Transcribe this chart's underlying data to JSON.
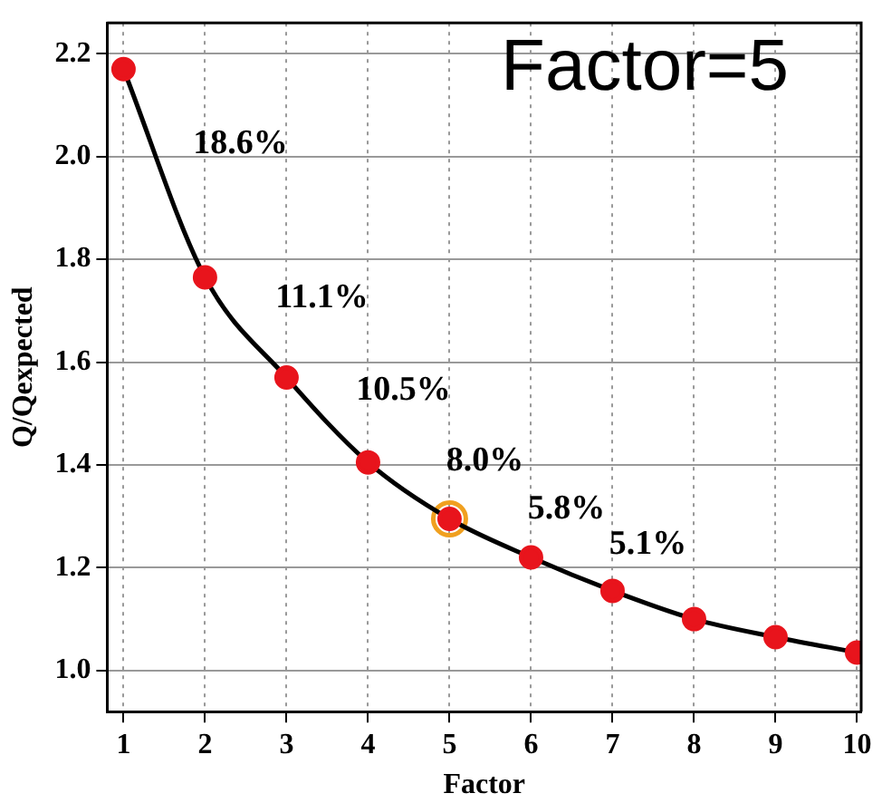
{
  "chart_data": {
    "type": "line",
    "xlabel": "Factor",
    "ylabel": "Q/Qexpected",
    "x": [
      1,
      2,
      3,
      4,
      5,
      6,
      7,
      8,
      9,
      10
    ],
    "series": [
      {
        "color": "#e8141c",
        "values": [
          2.17,
          1.765,
          1.57,
          1.405,
          1.295,
          1.22,
          1.155,
          1.1,
          1.065,
          1.035
        ],
        "marker": "circle",
        "line_style": "solid"
      },
      {
        "type": "scatter",
        "color": "#f0a020",
        "x": [
          5
        ],
        "values": [
          1.295
        ],
        "marker": "circle"
      }
    ],
    "xlim": [
      0.8,
      10.05
    ],
    "xticks": [
      1,
      2,
      3,
      4,
      5,
      6,
      7,
      8,
      9,
      10
    ],
    "ylim": [
      0.92,
      2.26
    ],
    "yticks": [
      {
        "value": 1.0,
        "label": "1.0"
      },
      {
        "value": 1.2,
        "label": "1.2"
      },
      {
        "value": 1.4,
        "label": "1.4"
      },
      {
        "value": 1.6,
        "label": "1.6"
      },
      {
        "value": 1.8,
        "label": "1.8"
      },
      {
        "value": 2.0,
        "label": "2.0"
      },
      {
        "value": 2.2,
        "label": "2.2"
      }
    ],
    "grid": true,
    "legend": false,
    "annotations": [
      "Factor=5",
      "18.6%",
      "11.1%",
      "10.5%",
      "8.0%",
      "5.8%",
      "5.1%"
    ]
  }
}
